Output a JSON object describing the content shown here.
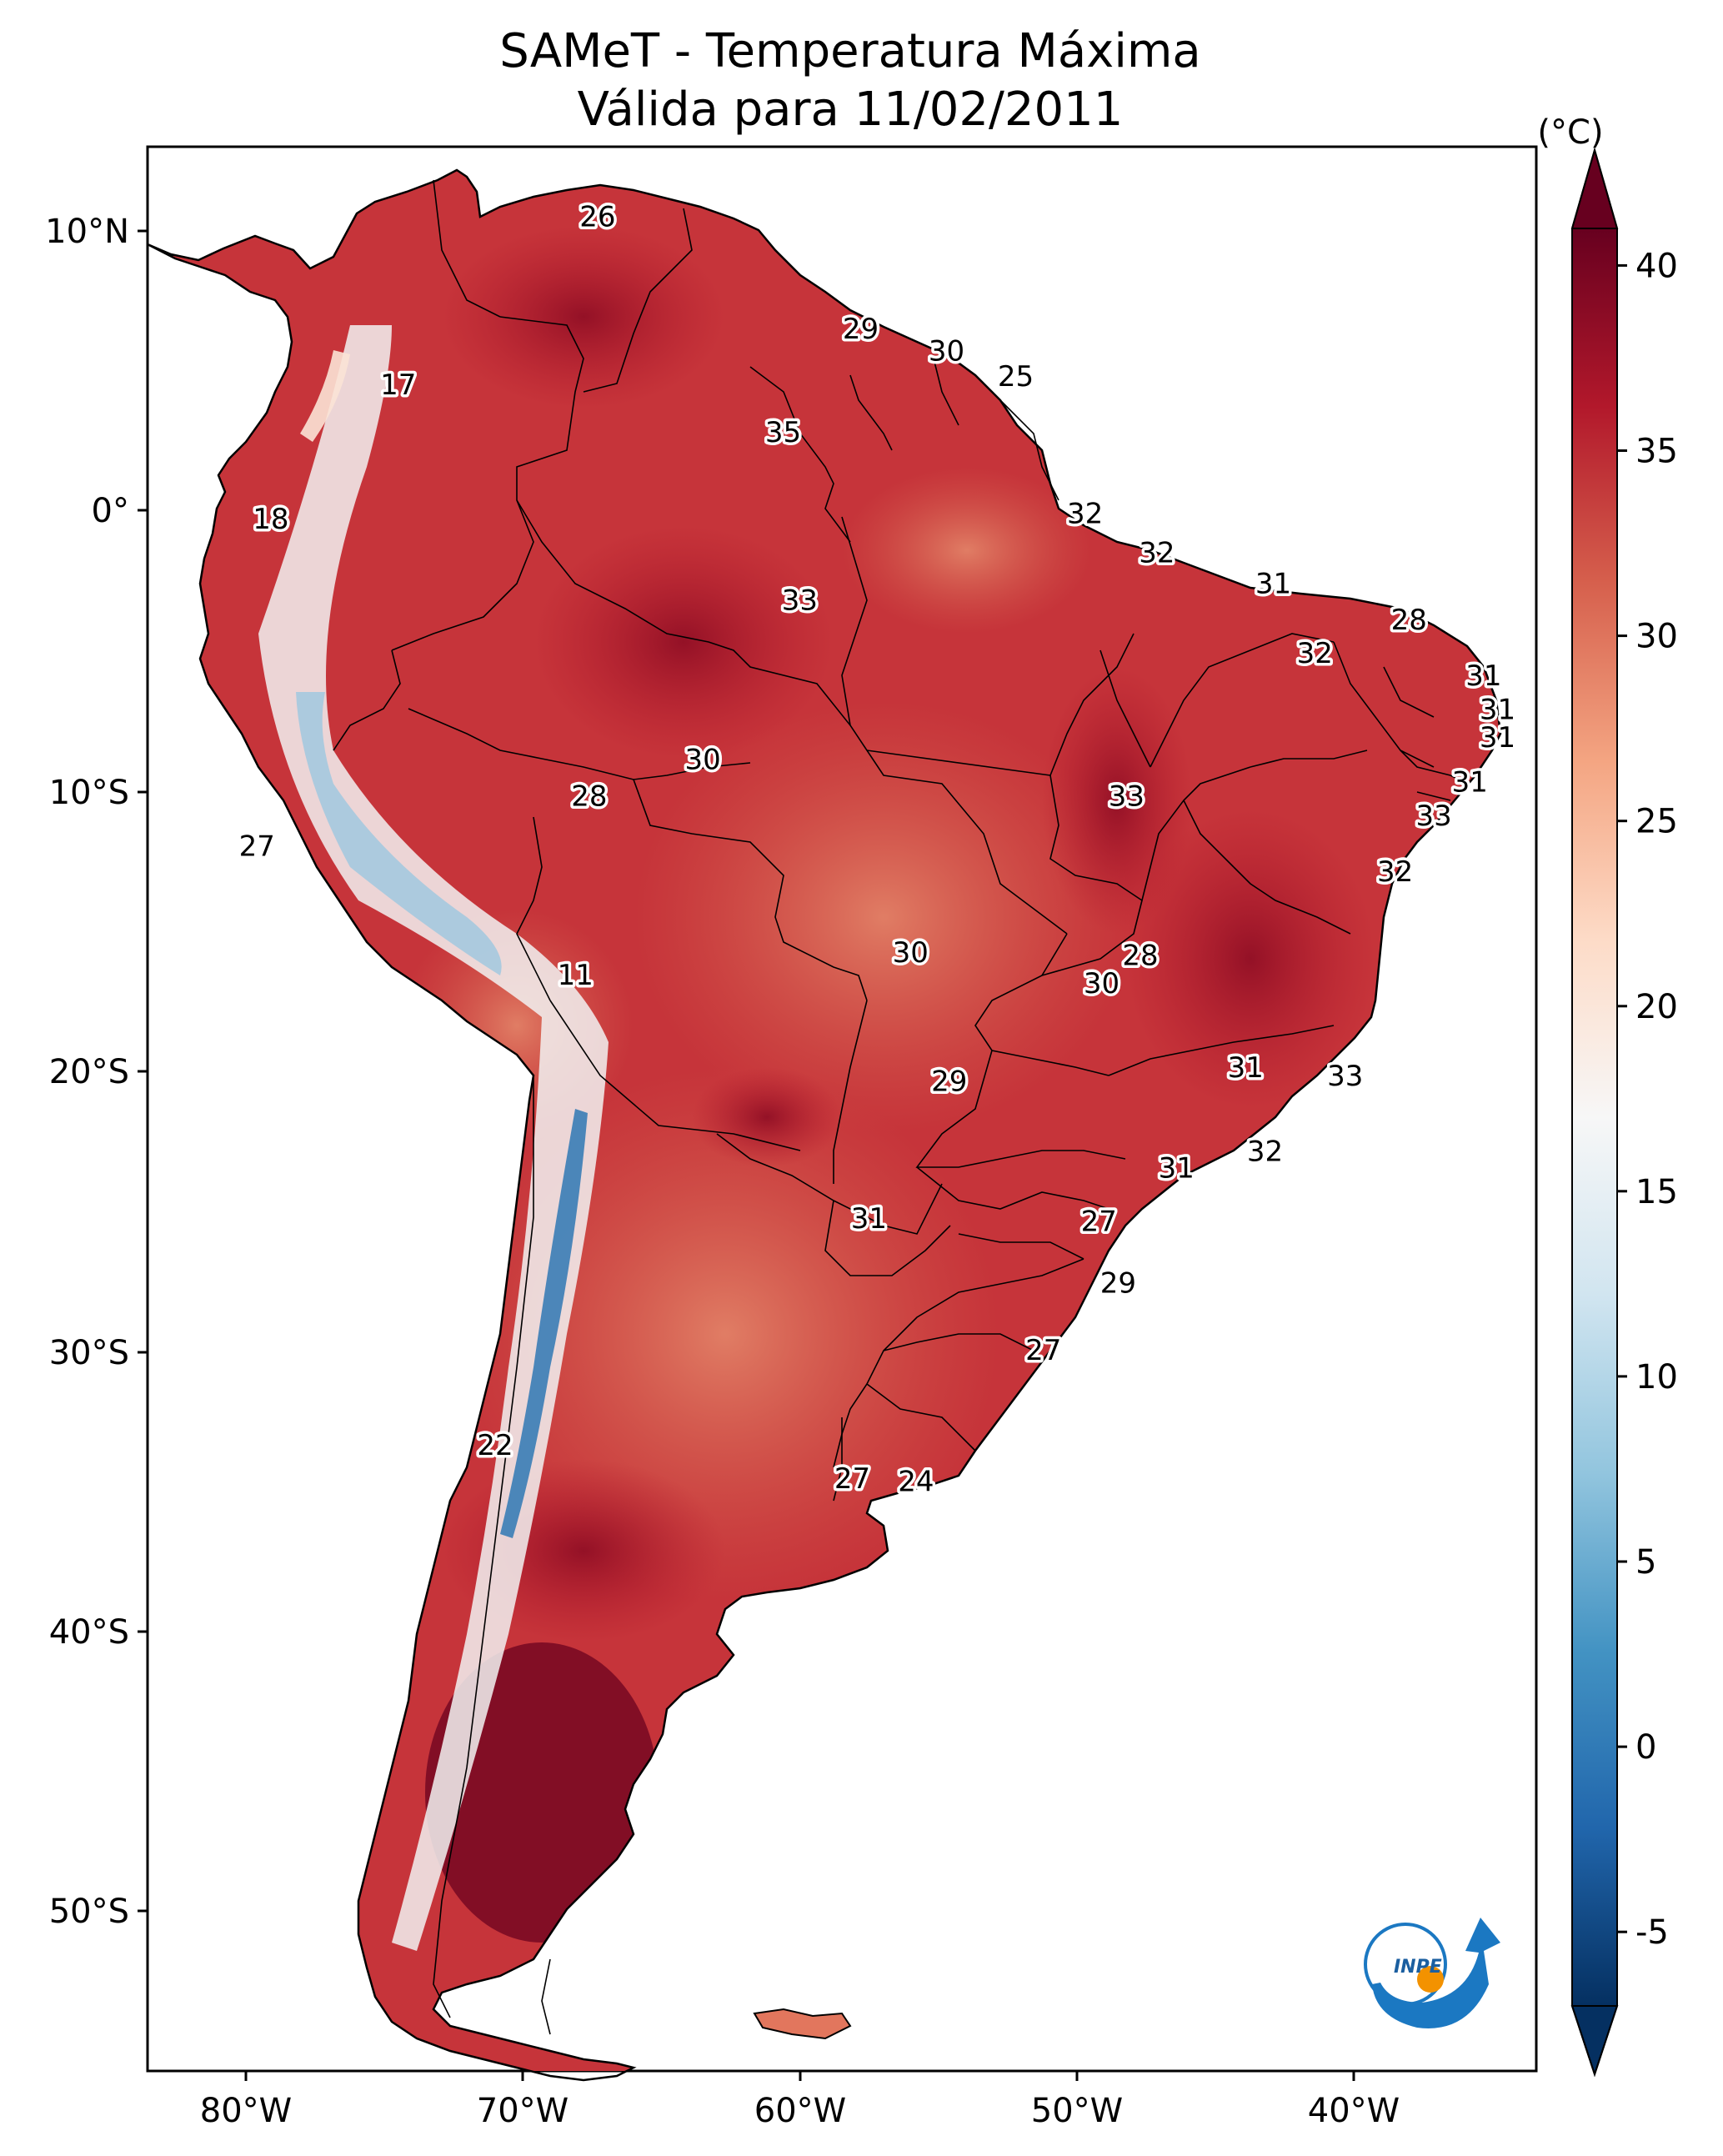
{
  "title": {
    "line1": "SAMeT - Temperatura Máxima",
    "line2": "Válida para 11/02/2011"
  },
  "longitude_labels": [
    "80°W",
    "70°W",
    "60°W",
    "50°W",
    "40°W"
  ],
  "latitude_labels": [
    "10°N",
    "0°",
    "10°S",
    "20°S",
    "30°S",
    "40°S",
    "50°S"
  ],
  "colorbar": {
    "unit": "(°C)",
    "ticks": [
      "40",
      "35",
      "30",
      "25",
      "20",
      "15",
      "10",
      "5",
      "0",
      "-5"
    ],
    "min": -7,
    "max": 41,
    "colors": [
      "#053061",
      "#2166ac",
      "#4393c3",
      "#92c5de",
      "#d1e5f0",
      "#f7f7f7",
      "#fddbc7",
      "#f4a582",
      "#d6604d",
      "#b2182b",
      "#67001f"
    ]
  },
  "map_values": [
    {
      "label": "26",
      "lon": -67.3,
      "lat": 10.5
    },
    {
      "label": "29",
      "lon": -57.8,
      "lat": 6.5
    },
    {
      "label": "30",
      "lon": -54.7,
      "lat": 5.7
    },
    {
      "label": "25",
      "lon": -52.2,
      "lat": 4.8
    },
    {
      "label": "17",
      "lon": -74.5,
      "lat": 4.5
    },
    {
      "label": "35",
      "lon": -60.6,
      "lat": 2.8
    },
    {
      "label": "18",
      "lon": -79.1,
      "lat": -0.3
    },
    {
      "label": "32",
      "lon": -49.7,
      "lat": -0.1
    },
    {
      "label": "32",
      "lon": -47.1,
      "lat": -1.5
    },
    {
      "label": "31",
      "lon": -42.9,
      "lat": -2.6
    },
    {
      "label": "33",
      "lon": -60.0,
      "lat": -3.2
    },
    {
      "label": "28",
      "lon": -38.0,
      "lat": -3.9
    },
    {
      "label": "32",
      "lon": -41.4,
      "lat": -5.1
    },
    {
      "label": "31",
      "lon": -35.3,
      "lat": -5.9
    },
    {
      "label": "31",
      "lon": -34.8,
      "lat": -7.1
    },
    {
      "label": "31",
      "lon": -34.8,
      "lat": -8.1
    },
    {
      "label": "30",
      "lon": -63.5,
      "lat": -8.9
    },
    {
      "label": "31",
      "lon": -35.8,
      "lat": -9.7
    },
    {
      "label": "28",
      "lon": -67.6,
      "lat": -10.2
    },
    {
      "label": "33",
      "lon": -48.2,
      "lat": -10.2
    },
    {
      "label": "33",
      "lon": -37.1,
      "lat": -10.9
    },
    {
      "label": "27",
      "lon": -79.6,
      "lat": -12.0
    },
    {
      "label": "32",
      "lon": -38.5,
      "lat": -12.9
    },
    {
      "label": "30",
      "lon": -56.0,
      "lat": -15.8
    },
    {
      "label": "28",
      "lon": -47.7,
      "lat": -15.9
    },
    {
      "label": "30",
      "lon": -49.1,
      "lat": -16.9
    },
    {
      "label": "11",
      "lon": -68.1,
      "lat": -16.6
    },
    {
      "label": "31",
      "lon": -43.9,
      "lat": -19.9
    },
    {
      "label": "29",
      "lon": -54.6,
      "lat": -20.4
    },
    {
      "label": "33",
      "lon": -40.3,
      "lat": -20.2
    },
    {
      "label": "32",
      "lon": -43.2,
      "lat": -22.9
    },
    {
      "label": "31",
      "lon": -46.4,
      "lat": -23.5
    },
    {
      "label": "31",
      "lon": -57.5,
      "lat": -25.3
    },
    {
      "label": "27",
      "lon": -49.2,
      "lat": -25.4
    },
    {
      "label": "29",
      "lon": -48.5,
      "lat": -27.6
    },
    {
      "label": "27",
      "lon": -51.2,
      "lat": -30.0
    },
    {
      "label": "22",
      "lon": -71.0,
      "lat": -33.4
    },
    {
      "label": "27",
      "lon": -58.1,
      "lat": -34.6
    },
    {
      "label": "24",
      "lon": -55.8,
      "lat": -34.7
    }
  ]
}
